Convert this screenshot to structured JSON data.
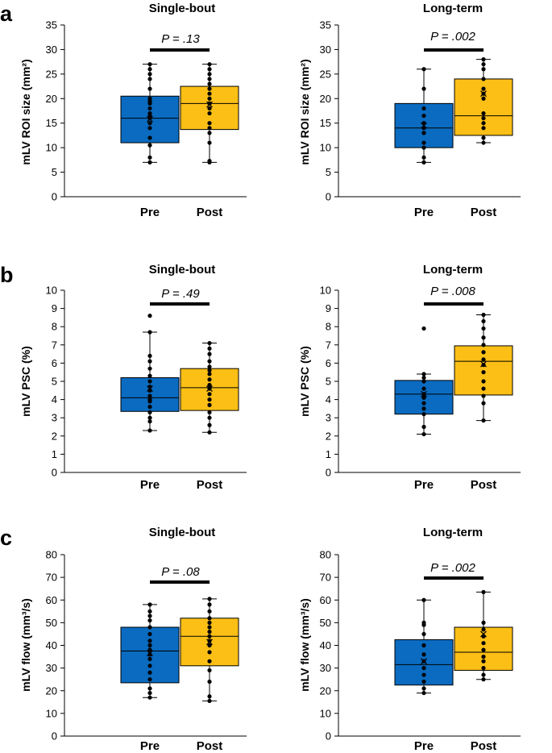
{
  "figure": {
    "panel_letters": [
      "a",
      "b",
      "c"
    ],
    "colors": {
      "pre": "#0a6bc0",
      "post": "#fbbf16",
      "ink": "#000000"
    }
  },
  "chart_data": [
    {
      "type": "boxplot",
      "panel": "a",
      "title": "Single-bout",
      "ylabel": "mLV ROI size (mm²)",
      "ylim": [
        0,
        35
      ],
      "yticks": [
        0,
        5,
        10,
        15,
        20,
        25,
        30,
        35
      ],
      "categories": [
        "Pre",
        "Post"
      ],
      "p_label": "P = .13",
      "series": [
        {
          "name": "Pre",
          "whisker_low": 7,
          "q1": 11,
          "median": 16,
          "q3": 20.5,
          "whisker_high": 27,
          "mean": 15.8,
          "points": [
            7,
            8,
            10.5,
            12,
            14,
            15,
            16,
            16.5,
            17,
            18,
            19,
            19.5,
            20,
            22,
            24,
            25,
            26,
            27
          ]
        },
        {
          "name": "Post",
          "whisker_low": 7,
          "q1": 13.7,
          "median": 19,
          "q3": 22.5,
          "whisker_high": 27,
          "mean": 18.8,
          "points": [
            7,
            7.3,
            11,
            13,
            14,
            15,
            17,
            18,
            19,
            19,
            20,
            21,
            22,
            23,
            24,
            25,
            26,
            27
          ]
        }
      ]
    },
    {
      "type": "boxplot",
      "panel": "a",
      "title": "Long-term",
      "ylabel": "mLV ROI size (mm²)",
      "ylim": [
        0,
        35
      ],
      "yticks": [
        0,
        5,
        10,
        15,
        20,
        25,
        30,
        35
      ],
      "categories": [
        "Pre",
        "Post"
      ],
      "p_label": "P = .002",
      "series": [
        {
          "name": "Pre",
          "whisker_low": 7,
          "q1": 10,
          "median": 14,
          "q3": 19,
          "whisker_high": 26,
          "mean": 14.5,
          "points": [
            7,
            8,
            10,
            11,
            13,
            14,
            15,
            16.5,
            18,
            22,
            26
          ]
        },
        {
          "name": "Post",
          "whisker_low": 11,
          "q1": 12.5,
          "median": 16.5,
          "q3": 24,
          "whisker_high": 28,
          "mean": 21,
          "points": [
            11,
            12,
            14,
            15,
            16,
            17,
            20,
            21,
            22,
            24,
            26,
            27,
            28
          ]
        }
      ]
    },
    {
      "type": "boxplot",
      "panel": "b",
      "title": "Single-bout",
      "ylabel": "mLV PSC (%)",
      "ylim": [
        0,
        10
      ],
      "yticks": [
        0,
        1,
        2,
        3,
        4,
        5,
        6,
        7,
        8,
        9,
        10
      ],
      "categories": [
        "Pre",
        "Post"
      ],
      "p_label": "P = .49",
      "series": [
        {
          "name": "Pre",
          "whisker_low": 2.3,
          "q1": 3.35,
          "median": 4.1,
          "q3": 5.2,
          "whisker_high": 7.7,
          "mean": 4.6,
          "points": [
            2.3,
            2.8,
            3.0,
            3.3,
            3.6,
            3.9,
            4.0,
            4.2,
            4.5,
            4.7,
            5.0,
            5.3,
            5.7,
            6.1,
            6.4,
            7.7,
            8.6
          ]
        },
        {
          "name": "Post",
          "whisker_low": 2.2,
          "q1": 3.4,
          "median": 4.65,
          "q3": 5.7,
          "whisker_high": 7.1,
          "mean": 4.6,
          "points": [
            2.2,
            2.6,
            3.0,
            3.3,
            3.7,
            4.0,
            4.3,
            4.6,
            4.8,
            5.1,
            5.4,
            5.6,
            5.8,
            6.1,
            6.5,
            6.8,
            7.1
          ]
        }
      ]
    },
    {
      "type": "boxplot",
      "panel": "b",
      "title": "Long-term",
      "ylabel": "mLV PSC (%)",
      "ylim": [
        0,
        10
      ],
      "yticks": [
        0,
        1,
        2,
        3,
        4,
        5,
        6,
        7,
        8,
        9,
        10
      ],
      "categories": [
        "Pre",
        "Post"
      ],
      "p_label": "P = .008",
      "series": [
        {
          "name": "Pre",
          "whisker_low": 2.1,
          "q1": 3.2,
          "median": 4.3,
          "q3": 5.05,
          "whisker_high": 5.4,
          "mean": 4.3,
          "points": [
            2.1,
            2.5,
            3.2,
            3.5,
            3.8,
            4.1,
            4.3,
            4.6,
            5.0,
            5.2,
            5.4,
            7.9
          ]
        },
        {
          "name": "Post",
          "whisker_low": 2.85,
          "q1": 4.25,
          "median": 6.1,
          "q3": 6.95,
          "whisker_high": 8.65,
          "mean": 5.95,
          "points": [
            2.85,
            3.8,
            4.2,
            4.6,
            5.0,
            5.5,
            5.9,
            6.2,
            6.6,
            7.0,
            7.4,
            7.9,
            8.3,
            8.65
          ]
        }
      ]
    },
    {
      "type": "boxplot",
      "panel": "c",
      "title": "Single-bout",
      "ylabel": "mLV flow (mm³/s)",
      "ylim": [
        0,
        80
      ],
      "yticks": [
        0,
        10,
        20,
        30,
        40,
        50,
        60,
        70,
        80
      ],
      "categories": [
        "Pre",
        "Post"
      ],
      "p_label": "P = .08",
      "series": [
        {
          "name": "Pre",
          "whisker_low": 17,
          "q1": 23.5,
          "median": 37.5,
          "q3": 48,
          "whisker_high": 58,
          "mean": 36.5,
          "points": [
            17,
            19,
            21,
            25,
            28,
            31,
            34,
            36,
            38,
            40,
            42,
            45,
            48,
            51,
            53,
            55,
            58
          ]
        },
        {
          "name": "Post",
          "whisker_low": 15.5,
          "q1": 31,
          "median": 44,
          "q3": 52,
          "whisker_high": 60.5,
          "mean": 41.5,
          "points": [
            15.5,
            17.5,
            24,
            29,
            33,
            37,
            40,
            42,
            44,
            46,
            48,
            50,
            52,
            55,
            58,
            60.5
          ]
        }
      ]
    },
    {
      "type": "boxplot",
      "panel": "c",
      "title": "Long-term",
      "ylabel": "mLV flow (mm³/s)",
      "ylim": [
        0,
        80
      ],
      "yticks": [
        0,
        10,
        20,
        30,
        40,
        50,
        60,
        70,
        80
      ],
      "categories": [
        "Pre",
        "Post"
      ],
      "p_label": "P = .002",
      "series": [
        {
          "name": "Pre",
          "whisker_low": 19,
          "q1": 22.5,
          "median": 31.5,
          "q3": 42.5,
          "whisker_high": 60,
          "mean": 33,
          "points": [
            19,
            21,
            24,
            27,
            30,
            33,
            36,
            40,
            45,
            49,
            50,
            60
          ]
        },
        {
          "name": "Post",
          "whisker_low": 25,
          "q1": 29,
          "median": 37,
          "q3": 48,
          "whisker_high": 63.5,
          "mean": 45,
          "points": [
            25,
            27,
            30,
            33,
            35,
            38,
            41,
            44,
            47,
            50,
            63.5
          ]
        }
      ]
    }
  ]
}
